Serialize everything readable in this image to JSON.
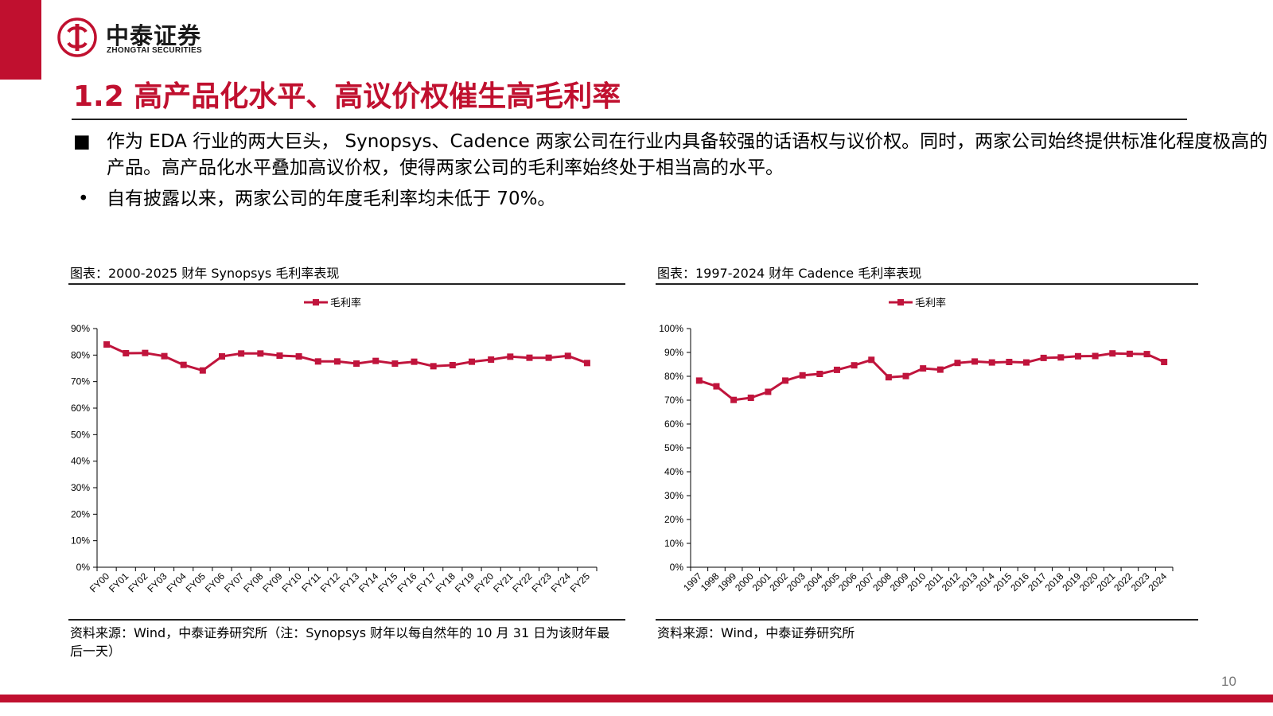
{
  "colors": {
    "brand_red": "#c0102f",
    "series_red": "#c0143c",
    "text": "#000000",
    "rule": "#222222"
  },
  "header": {
    "logo_cn": "中泰证券",
    "logo_en": "ZHONGTAI SECURITIES",
    "logo_icon": "zhongtai-logo-icon",
    "title": "1.2 高产品化水平、高议价权催生高毛利率"
  },
  "bullets": [
    {
      "marker": "■",
      "text": "作为 EDA 行业的两大巨头， Synopsys、Cadence 两家公司在行业内具备较强的话语权与议价权。同时，两家公司始终提供标准化程度极高的产品。高产品化水平叠加高议价权，使得两家公司的毛利率始终处于相当高的水平。"
    },
    {
      "marker": "•",
      "text": "自有披露以来，两家公司的年度毛利率均未低于 70%。"
    }
  ],
  "left": {
    "caption": "图表：2000-2025 财年 Synopsys 毛利率表现",
    "source": "资料来源：Wind，中泰证券研究所（注：Synopsys 财年以每自然年的 10 月 31 日为该财年最后一天）"
  },
  "right": {
    "caption": "图表：1997-2024 财年 Cadence 毛利率表现",
    "source": "资料来源：Wind，中泰证券研究所"
  },
  "chart_data": [
    {
      "type": "line",
      "legend": "毛利率",
      "legend_position": "top-center",
      "grid": false,
      "x": [
        "FY00",
        "FY01",
        "FY02",
        "FY03",
        "FY04",
        "FY05",
        "FY06",
        "FY07",
        "FY08",
        "FY09",
        "FY10",
        "FY11",
        "FY12",
        "FY13",
        "FY14",
        "FY15",
        "FY16",
        "FY17",
        "FY18",
        "FY19",
        "FY20",
        "FY21",
        "FY22",
        "FY23",
        "FY24",
        "FY25"
      ],
      "series": [
        {
          "name": "毛利率",
          "values": [
            84.0,
            80.7,
            80.8,
            79.6,
            76.3,
            74.2,
            79.5,
            80.6,
            80.6,
            79.8,
            79.5,
            77.6,
            77.6,
            76.8,
            77.8,
            76.8,
            77.5,
            75.8,
            76.2,
            77.5,
            78.3,
            79.4,
            79.0,
            79.0,
            79.7,
            77.0
          ]
        }
      ],
      "ylim": [
        0,
        90
      ],
      "yticks": [
        "0%",
        "10%",
        "20%",
        "30%",
        "40%",
        "50%",
        "60%",
        "70%",
        "80%",
        "90%"
      ],
      "ylabel": "",
      "xlabel": ""
    },
    {
      "type": "line",
      "legend": "毛利率",
      "legend_position": "top-center",
      "grid": false,
      "x": [
        "1997",
        "1998",
        "1999",
        "2000",
        "2001",
        "2002",
        "2003",
        "2004",
        "2005",
        "2006",
        "2007",
        "2008",
        "2009",
        "2010",
        "2011",
        "2012",
        "2013",
        "2014",
        "2015",
        "2016",
        "2017",
        "2018",
        "2019",
        "2020",
        "2021",
        "2022",
        "2023",
        "2024"
      ],
      "series": [
        {
          "name": "毛利率",
          "values": [
            78.2,
            75.8,
            70.1,
            71.0,
            73.5,
            78.2,
            80.4,
            81.0,
            82.7,
            84.6,
            86.9,
            79.6,
            80.1,
            83.3,
            82.8,
            85.6,
            86.2,
            85.8,
            86.0,
            85.8,
            87.7,
            87.9,
            88.4,
            88.5,
            89.6,
            89.4,
            89.3,
            86.0
          ]
        }
      ],
      "ylim": [
        0,
        100
      ],
      "yticks": [
        "0%",
        "10%",
        "20%",
        "30%",
        "40%",
        "50%",
        "60%",
        "70%",
        "80%",
        "90%",
        "100%"
      ],
      "ylabel": "",
      "xlabel": ""
    }
  ],
  "page_number": "10"
}
